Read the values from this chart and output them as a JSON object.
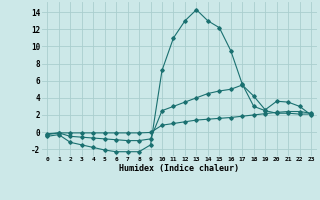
{
  "xlabel": "Humidex (Indice chaleur)",
  "background_color": "#cce8e8",
  "grid_color": "#aacece",
  "line_color": "#1a7070",
  "xlim": [
    -0.5,
    23.5
  ],
  "ylim": [
    -2.8,
    15.2
  ],
  "xticks": [
    0,
    1,
    2,
    3,
    4,
    5,
    6,
    7,
    8,
    9,
    10,
    11,
    12,
    13,
    14,
    15,
    16,
    17,
    18,
    19,
    20,
    21,
    22,
    23
  ],
  "yticks": [
    -2,
    0,
    2,
    4,
    6,
    8,
    10,
    12,
    14
  ],
  "curves": [
    {
      "x": [
        0,
        1,
        2,
        3,
        4,
        5,
        6,
        7,
        8,
        9,
        10,
        11,
        12,
        13,
        14,
        15,
        16,
        17,
        18,
        19,
        20,
        21,
        22,
        23
      ],
      "y": [
        -0.5,
        -0.3,
        -1.2,
        -1.5,
        -1.8,
        -2.1,
        -2.3,
        -2.3,
        -2.3,
        -1.5,
        7.2,
        11.0,
        13.0,
        14.3,
        13.0,
        12.2,
        9.5,
        5.6,
        3.0,
        2.5,
        2.2,
        2.2,
        2.1,
        2.1
      ]
    },
    {
      "x": [
        0,
        1,
        2,
        3,
        4,
        5,
        6,
        7,
        8,
        9,
        10,
        11,
        12,
        13,
        14,
        15,
        16,
        17,
        18,
        19,
        20,
        21,
        22,
        23
      ],
      "y": [
        -0.3,
        -0.1,
        -0.5,
        -0.6,
        -0.7,
        -0.8,
        -0.9,
        -1.0,
        -1.0,
        -0.8,
        2.5,
        3.0,
        3.5,
        4.0,
        4.5,
        4.8,
        5.0,
        5.5,
        4.2,
        2.6,
        3.6,
        3.5,
        3.0,
        2.0
      ]
    },
    {
      "x": [
        0,
        1,
        2,
        3,
        4,
        5,
        6,
        7,
        8,
        9,
        10,
        11,
        12,
        13,
        14,
        15,
        16,
        17,
        18,
        19,
        20,
        21,
        22,
        23
      ],
      "y": [
        -0.2,
        -0.1,
        -0.1,
        -0.1,
        -0.1,
        -0.1,
        -0.1,
        -0.1,
        -0.1,
        -0.05,
        0.8,
        1.0,
        1.2,
        1.4,
        1.5,
        1.6,
        1.7,
        1.85,
        2.0,
        2.15,
        2.3,
        2.4,
        2.4,
        2.2
      ]
    }
  ],
  "figsize": [
    3.2,
    2.0
  ],
  "dpi": 100
}
